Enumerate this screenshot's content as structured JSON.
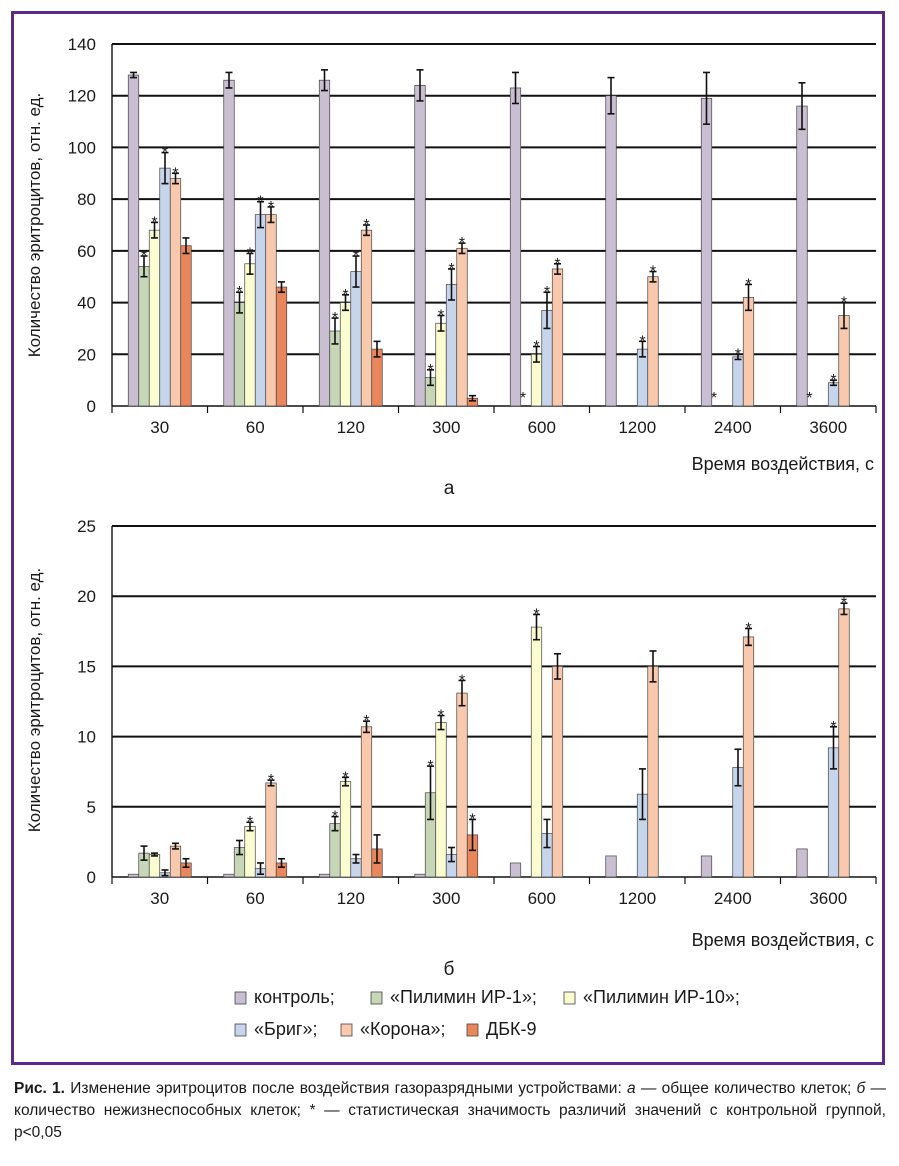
{
  "chart_data": [
    {
      "type": "bar",
      "panel_label": "а",
      "ylabel": "Количество эритроцитов, отн. ед.",
      "xlabel": "Время воздействия, с",
      "ylim": [
        0,
        140
      ],
      "yticks": [
        "0",
        "20",
        "40",
        "60",
        "80",
        "100",
        "120",
        "140"
      ],
      "grid": true,
      "categories": [
        "30",
        "60",
        "120",
        "300",
        "600",
        "1200",
        "2400",
        "3600"
      ],
      "series": [
        {
          "name": "контроль",
          "color": "#cabfd2",
          "values": [
            128,
            126,
            126,
            124,
            123,
            120,
            119,
            116
          ],
          "errors": [
            1,
            3,
            4,
            6,
            6,
            7,
            10,
            9
          ],
          "stars": [
            false,
            false,
            false,
            false,
            false,
            false,
            false,
            false
          ]
        },
        {
          "name": "«Пилимин ИР-1»",
          "color": "#c6d6b7",
          "values": [
            54,
            40,
            29,
            11,
            0,
            0,
            0,
            0
          ],
          "errors": [
            4,
            4,
            5,
            3,
            0,
            0,
            0,
            0
          ],
          "stars": [
            true,
            true,
            true,
            true,
            true,
            false,
            true,
            true
          ]
        },
        {
          "name": "«Пилимин ИР-10»",
          "color": "#fbfcd0",
          "values": [
            68,
            55,
            40,
            32,
            20,
            0,
            0,
            0
          ],
          "errors": [
            3,
            4,
            3,
            3,
            3,
            0,
            0,
            0
          ],
          "stars": [
            true,
            true,
            true,
            true,
            true,
            false,
            false,
            false
          ]
        },
        {
          "name": "«Бриг»",
          "color": "#c6d4ec",
          "values": [
            92,
            74,
            52,
            47,
            37,
            22,
            19,
            9
          ],
          "errors": [
            6,
            5,
            6,
            6,
            7,
            3,
            1,
            1
          ],
          "stars": [
            true,
            true,
            true,
            true,
            true,
            true,
            true,
            true
          ]
        },
        {
          "name": "«Корона»",
          "color": "#f8c9ac",
          "values": [
            88,
            74,
            68,
            61,
            53,
            50,
            42,
            35
          ],
          "errors": [
            2,
            3,
            2,
            2,
            2,
            2,
            5,
            5
          ],
          "stars": [
            true,
            true,
            true,
            true,
            true,
            true,
            true,
            true
          ]
        },
        {
          "name": "ДБК-9",
          "color": "#e9865c",
          "values": [
            62,
            46,
            22,
            3,
            0,
            0,
            0,
            0
          ],
          "errors": [
            3,
            2,
            3,
            1,
            0,
            0,
            0,
            0
          ],
          "stars": [
            false,
            false,
            false,
            false,
            false,
            false,
            false,
            false
          ]
        }
      ]
    },
    {
      "type": "bar",
      "panel_label": "б",
      "ylabel": "Количество эритроцитов, отн. ед.",
      "xlabel": "Время воздействия, с",
      "ylim": [
        0,
        25
      ],
      "yticks": [
        "0",
        "5",
        "10",
        "15",
        "20",
        "25"
      ],
      "grid": true,
      "categories": [
        "30",
        "60",
        "120",
        "300",
        "600",
        "1200",
        "2400",
        "3600"
      ],
      "series": [
        {
          "name": "контроль",
          "color": "#cabfd2",
          "values": [
            0.2,
            0.2,
            0.2,
            0.2,
            1.0,
            1.5,
            1.5,
            2.0
          ],
          "errors": [
            0,
            0,
            0,
            0,
            0,
            0,
            0,
            0
          ],
          "stars": [
            false,
            false,
            false,
            false,
            false,
            false,
            false,
            false
          ]
        },
        {
          "name": "«Пилимин ИР-1»",
          "color": "#c6d6b7",
          "values": [
            1.7,
            2.1,
            3.8,
            6.0,
            0,
            0,
            0,
            0
          ],
          "errors": [
            0.5,
            0.5,
            0.5,
            1.9,
            0,
            0,
            0,
            0
          ],
          "stars": [
            false,
            false,
            true,
            true,
            false,
            false,
            false,
            false
          ]
        },
        {
          "name": "«Пилимин ИР-10»",
          "color": "#fbfcd0",
          "values": [
            1.6,
            3.6,
            6.8,
            11.0,
            17.8,
            0,
            0,
            0
          ],
          "errors": [
            0.1,
            0.3,
            0.3,
            0.5,
            0.9,
            0,
            0,
            0
          ],
          "stars": [
            false,
            true,
            true,
            true,
            true,
            false,
            false,
            false
          ]
        },
        {
          "name": "«Бриг»",
          "color": "#c6d4ec",
          "values": [
            0.3,
            0.6,
            1.3,
            1.6,
            3.1,
            5.9,
            7.8,
            9.2
          ],
          "errors": [
            0.2,
            0.4,
            0.3,
            0.5,
            1.0,
            1.8,
            1.3,
            1.5
          ],
          "stars": [
            false,
            false,
            false,
            false,
            false,
            false,
            false,
            true
          ]
        },
        {
          "name": "«Корона»",
          "color": "#f8c9ac",
          "values": [
            2.2,
            6.7,
            10.7,
            13.1,
            15.0,
            15.0,
            17.1,
            19.1
          ],
          "errors": [
            0.2,
            0.2,
            0.4,
            0.9,
            0.9,
            1.1,
            0.6,
            0.4
          ],
          "stars": [
            false,
            true,
            true,
            true,
            false,
            false,
            true,
            true
          ]
        },
        {
          "name": "ДБК-9",
          "color": "#e9865c",
          "values": [
            1.0,
            1.0,
            2.0,
            3.0,
            0,
            0,
            0,
            0
          ],
          "errors": [
            0.3,
            0.3,
            1.0,
            1.1,
            0,
            0,
            0,
            0
          ],
          "stars": [
            false,
            false,
            false,
            true,
            false,
            false,
            false,
            false
          ]
        }
      ]
    }
  ],
  "legend": {
    "row1": [
      {
        "label": "контроль;",
        "color": "#cabfd2"
      },
      {
        "label": "«Пилимин ИР-1»;",
        "color": "#c6d6b7"
      },
      {
        "label": "«Пилимин ИР-10»;",
        "color": "#fbfcd0"
      }
    ],
    "row2": [
      {
        "label": "«Бриг»;",
        "color": "#c6d4ec"
      },
      {
        "label": "«Корона»;",
        "color": "#f8c9ac"
      },
      {
        "label": "ДБК-9",
        "color": "#e9865c"
      }
    ]
  },
  "caption": {
    "label": "Рис. 1.",
    "part1": " Изменение эритроцитов после воздействия газоразрядными устройствами: ",
    "a_letter": "а",
    "part2": " — общее количество клеток; ",
    "b_letter": "б",
    "part3": " — количество нежизнеспособных клеток; * — статистическая значимость различий значений с контрольной группой, p<0,05"
  }
}
